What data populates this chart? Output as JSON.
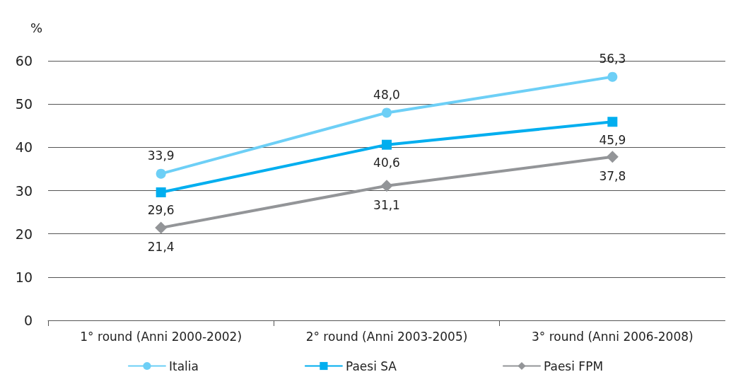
{
  "chart_data": {
    "type": "line",
    "ylabel": "%",
    "categories": [
      "1° round (Anni 2000-2002)",
      "2° round (Anni 2003-2005)",
      "3° round (Anni 2006-2008)"
    ],
    "series": [
      {
        "name": "Italia",
        "color": "#6dcff6",
        "values": [
          33.9,
          48.0,
          56.3
        ],
        "value_labels": [
          "33,9",
          "48,0",
          "56,3"
        ],
        "marker": "circle"
      },
      {
        "name": "Paesi SA",
        "color": "#00aeef",
        "values": [
          29.6,
          40.6,
          45.9
        ],
        "value_labels": [
          "29,6",
          "40,6",
          "45,9"
        ],
        "marker": "square"
      },
      {
        "name": "Paesi FPM",
        "color": "#939598",
        "values": [
          21.4,
          31.1,
          37.8
        ],
        "value_labels": [
          "21,4",
          "31,1",
          "37,8"
        ],
        "marker": "diamond"
      }
    ],
    "ylim": [
      0,
      60
    ],
    "yticks": [
      0,
      10,
      20,
      30,
      40,
      50,
      60
    ],
    "grid": "y",
    "legend": "bottom",
    "line_style": "solid"
  }
}
